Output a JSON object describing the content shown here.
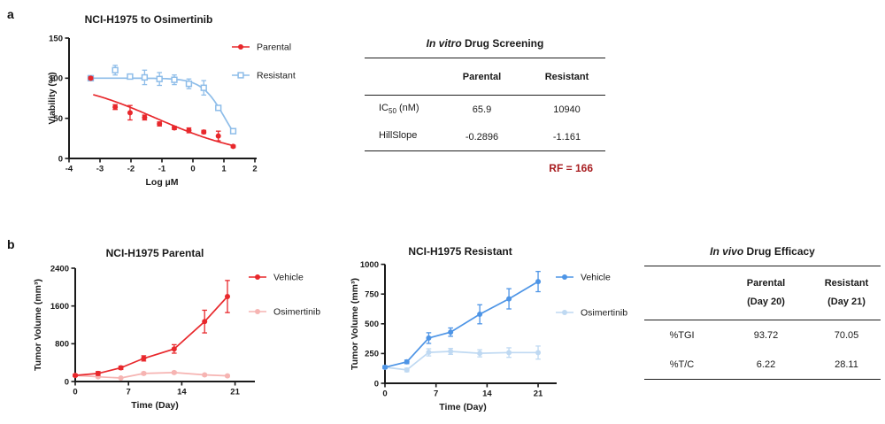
{
  "page": {
    "background": "#ffffff",
    "panel_a_label": "a",
    "panel_b_label": "b"
  },
  "colors": {
    "parental_red": "#e8282c",
    "osimertinib_pink": "#f6b4b2",
    "vehicle_blue": "#4e95e6",
    "osimertinib_lightblue": "#bfd9f2",
    "resistant_blue": "#8ebde9",
    "axis_black": "#1a1a1a",
    "rf_darkred": "#a81d20"
  },
  "chart_data": [
    {
      "type": "line",
      "title": "NCI-H1975 to Osimertinib",
      "xlabel": "Log µM",
      "ylabel": "Viability (%)",
      "xlim": [
        -4,
        2.07
      ],
      "ylim": [
        0,
        150
      ],
      "xticks": [
        -4,
        -3,
        -2,
        -1,
        0,
        1,
        2
      ],
      "yticks": [
        0,
        50,
        100,
        150
      ],
      "x": [
        -3.3,
        -2.51,
        -2.03,
        -1.56,
        -1.08,
        -0.6,
        -0.13,
        0.35,
        0.82,
        1.3
      ],
      "series": [
        {
          "name": "Resistant",
          "color": "#8ebde9",
          "marker": "square-open",
          "connect": false,
          "values": [
            100,
            110,
            102,
            101,
            99,
            98,
            93,
            88,
            63,
            34
          ],
          "errors": [
            0,
            6,
            3,
            9,
            8,
            6,
            6,
            9,
            3,
            2
          ],
          "fit": {
            "top": 100,
            "bottom": 0,
            "logIC50": 1.039,
            "hill": 1.161,
            "xmin": -3.3,
            "xmax": 1.3
          }
        },
        {
          "name": "Parental",
          "color": "#e8282c",
          "marker": "circle-filled",
          "connect": false,
          "values": [
            100,
            64,
            57,
            51,
            43,
            38,
            35,
            33,
            28,
            15
          ],
          "errors": [
            1.5,
            3,
            9,
            3,
            2.5,
            2,
            3,
            2,
            6,
            1.5
          ],
          "fit": {
            "top": 100,
            "bottom": 0,
            "logIC50": -1.181,
            "hill": 0.2896,
            "xmin": -3.22,
            "xmax": 1.3
          }
        }
      ],
      "legend": [
        {
          "label": "Parental",
          "color": "#e8282c",
          "marker": "circle-filled"
        },
        {
          "label": "Resistant",
          "color": "#8ebde9",
          "marker": "square-open"
        }
      ]
    },
    {
      "type": "line",
      "title": "NCI-H1975 Parental",
      "xlabel": "Time (Day)",
      "ylabel": "Tumor Volume (mm³)",
      "xlim": [
        0,
        23.6
      ],
      "ylim": [
        0,
        2400
      ],
      "xticks": [
        0,
        7,
        14,
        21
      ],
      "yticks": [
        0,
        800,
        1600,
        2400
      ],
      "x": [
        0,
        3,
        6,
        9,
        13,
        17,
        20
      ],
      "series": [
        {
          "name": "Osimertinib",
          "color": "#f6b4b2",
          "marker": "circle-filled",
          "connect": true,
          "values": [
            130,
            100,
            75,
            170,
            190,
            140,
            120
          ],
          "errors": [
            15,
            20,
            15,
            28,
            25,
            20,
            20
          ]
        },
        {
          "name": "Vehicle",
          "color": "#e8282c",
          "marker": "circle-filled",
          "connect": true,
          "values": [
            130,
            170,
            290,
            490,
            690,
            1270,
            1800
          ],
          "errors": [
            25,
            40,
            35,
            55,
            90,
            240,
            340
          ]
        }
      ],
      "legend": [
        {
          "label": "Vehicle",
          "color": "#e8282c",
          "marker": "circle-filled"
        },
        {
          "label": "Osimertinib",
          "color": "#f6b4b2",
          "marker": "circle-filled"
        }
      ]
    },
    {
      "type": "line",
      "title": "NCI-H1975 Resistant",
      "xlabel": "Time (Day)",
      "ylabel": "Tumor Volume (mm³)",
      "xlim": [
        0,
        23.5
      ],
      "ylim": [
        0,
        1000
      ],
      "xticks": [
        0,
        7,
        14,
        21
      ],
      "yticks": [
        0,
        250,
        500,
        750,
        1000
      ],
      "x": [
        0,
        3,
        6,
        9,
        13,
        17,
        21
      ],
      "series": [
        {
          "name": "Osimertinib",
          "color": "#bfd9f2",
          "marker": "circle-filled",
          "connect": true,
          "values": [
            135,
            112,
            260,
            268,
            252,
            258,
            258
          ],
          "errors": [
            10,
            15,
            30,
            25,
            30,
            40,
            55
          ]
        },
        {
          "name": "Vehicle",
          "color": "#4e95e6",
          "marker": "circle-filled",
          "connect": true,
          "values": [
            135,
            180,
            380,
            430,
            580,
            710,
            855
          ],
          "errors": [
            12,
            15,
            45,
            35,
            80,
            85,
            85
          ]
        }
      ],
      "legend": [
        {
          "label": "Vehicle",
          "color": "#4e95e6",
          "marker": "circle-filled"
        },
        {
          "label": "Osimertinib",
          "color": "#bfd9f2",
          "marker": "circle-filled"
        }
      ]
    }
  ],
  "tables": {
    "invitro": {
      "title_italic": "In vitro",
      "title_rest": " Drug Screening",
      "columns": [
        "Parental",
        "Resistant"
      ],
      "rows": [
        {
          "label": {
            "main": "IC",
            "sub": "50",
            "rest": " (nM)"
          },
          "values": [
            "65.9",
            "10940"
          ]
        },
        {
          "label": {
            "main": "HillSlope",
            "sub": "",
            "rest": ""
          },
          "values": [
            "-0.2896",
            "-1.161"
          ]
        }
      ],
      "footnote": "RF = 166",
      "footnote_color": "#a81d20"
    },
    "invivo": {
      "title_italic": "In vivo",
      "title_rest": " Drug Efficacy",
      "columns": [
        {
          "line1": "Parental",
          "line2": "(Day 20)"
        },
        {
          "line1": "Resistant",
          "line2": "(Day 21)"
        }
      ],
      "rows": [
        {
          "label": "%TGI",
          "values": [
            "93.72",
            "70.05"
          ]
        },
        {
          "label": "%T/C",
          "values": [
            "6.22",
            "28.11"
          ]
        }
      ]
    }
  }
}
